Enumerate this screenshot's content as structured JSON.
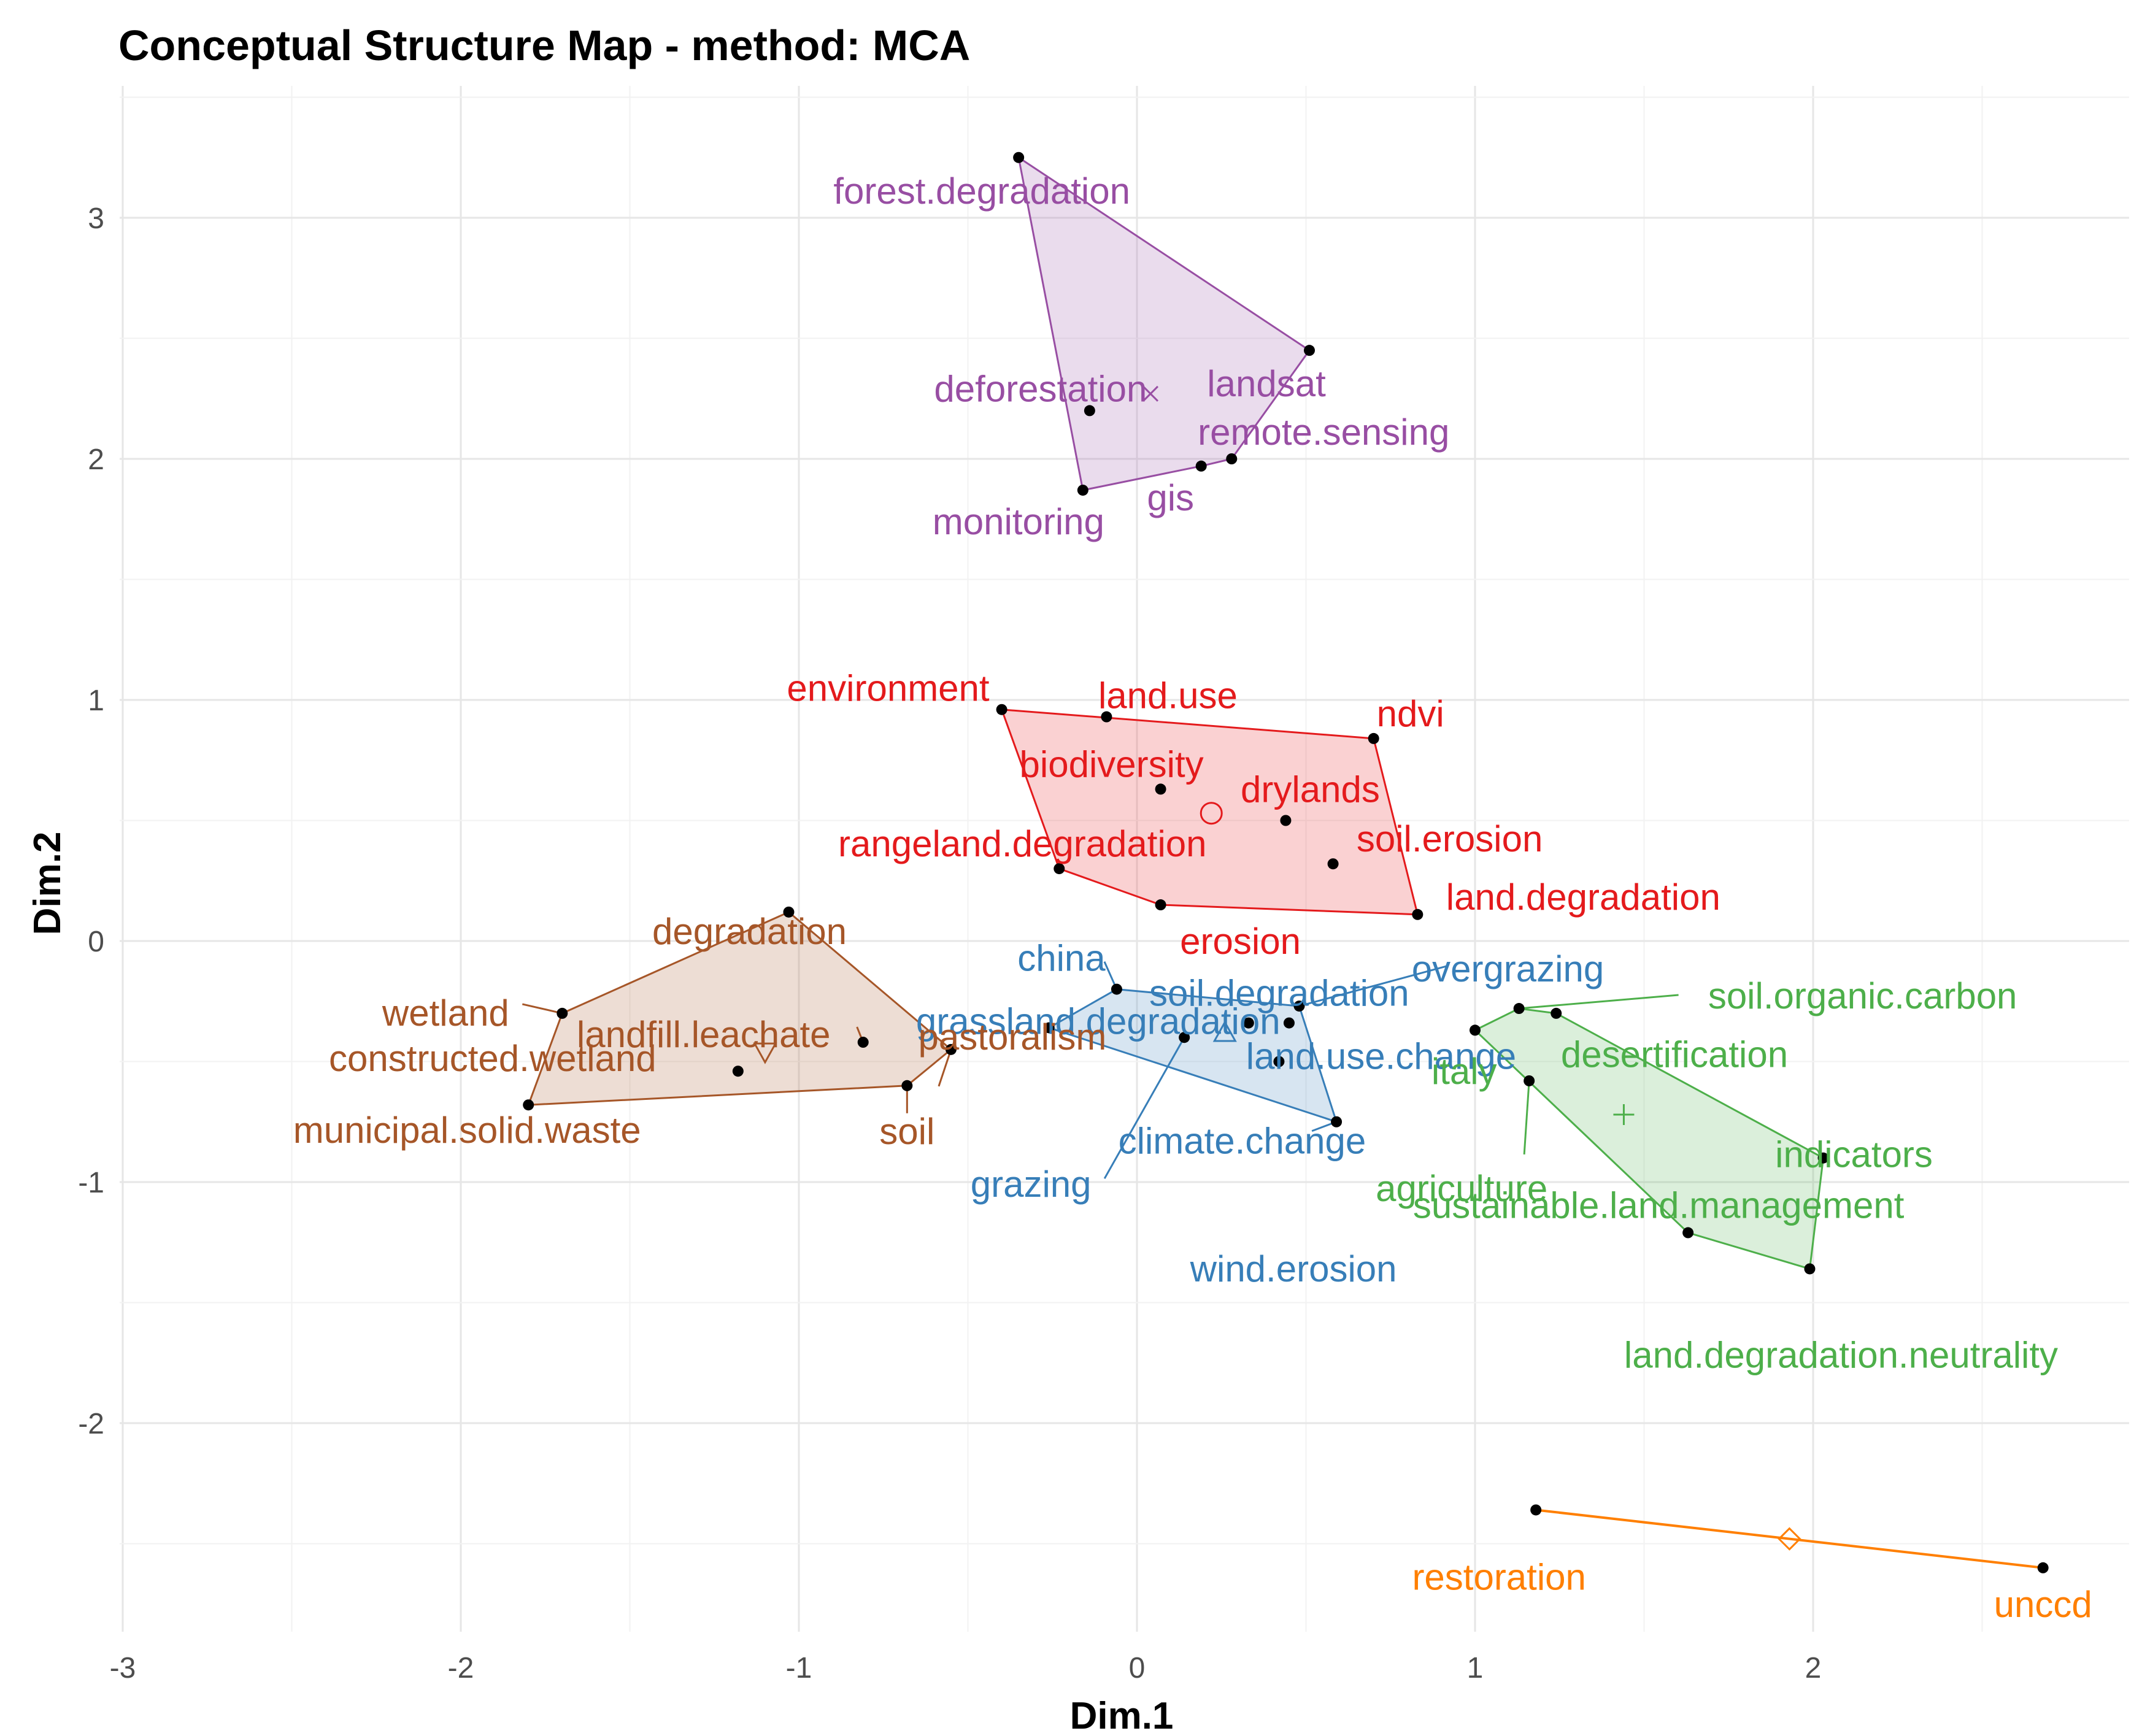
{
  "chart_data": {
    "type": "scatter",
    "title": "Conceptual Structure Map - method: MCA",
    "xlabel": "Dim.1",
    "ylabel": "Dim.2",
    "xlim": [
      -3,
      2.9
    ],
    "ylim": [
      -2.9,
      3.5
    ],
    "x_ticks": [
      -3,
      -2,
      -1,
      0,
      1,
      2
    ],
    "y_ticks": [
      -2,
      -1,
      0,
      1,
      2,
      3
    ],
    "grid": true,
    "legend": "none",
    "clusters": [
      {
        "id": 1,
        "color": "#e41a1c",
        "centroid": {
          "x": 0.22,
          "y": 0.53,
          "marker": "circle"
        },
        "points": [
          {
            "label": "environment",
            "x": -0.4,
            "y": 0.96
          },
          {
            "label": "land.use",
            "x": -0.09,
            "y": 0.93
          },
          {
            "label": "ndvi",
            "x": 0.7,
            "y": 0.84
          },
          {
            "label": "biodiversity",
            "x": 0.07,
            "y": 0.63
          },
          {
            "label": "drylands",
            "x": 0.44,
            "y": 0.5
          },
          {
            "label": "soil.erosion",
            "x": 0.58,
            "y": 0.32
          },
          {
            "label": "rangeland.degradation",
            "x": -0.23,
            "y": 0.3
          },
          {
            "label": "erosion",
            "x": 0.07,
            "y": 0.15
          },
          {
            "label": "land.degradation",
            "x": 0.83,
            "y": 0.11
          }
        ],
        "hull": [
          "environment",
          "ndvi",
          "land.degradation",
          "erosion",
          "rangeland.degradation"
        ]
      },
      {
        "id": 2,
        "color": "#377eb8",
        "centroid": {
          "x": 0.26,
          "y": -0.38,
          "marker": "triangle"
        },
        "points": [
          {
            "label": "china",
            "x": -0.06,
            "y": -0.2
          },
          {
            "label": "overgrazing",
            "x": 0.48,
            "y": -0.27
          },
          {
            "label": "soil.degradation",
            "x": 0.33,
            "y": -0.34
          },
          {
            "label": "grassland.degradation",
            "x": -0.26,
            "y": -0.36
          },
          {
            "label": "land.use.change",
            "x": 0.45,
            "y": -0.34
          },
          {
            "label": "climate.change",
            "x": 0.42,
            "y": -0.5
          },
          {
            "label": "grazing",
            "x": 0.14,
            "y": -0.4
          },
          {
            "label": "wind.erosion",
            "x": 0.59,
            "y": -0.75
          }
        ],
        "hull": [
          "china",
          "overgrazing",
          "wind.erosion",
          "grassland.degradation"
        ]
      },
      {
        "id": 3,
        "color": "#4daf4a",
        "centroid": {
          "x": 1.44,
          "y": -0.72,
          "marker": "plus"
        },
        "points": [
          {
            "label": "soil.organic.carbon",
            "x": 1.13,
            "y": -0.28
          },
          {
            "label": "italy",
            "x": 1.24,
            "y": -0.3
          },
          {
            "label": "desertification",
            "x": 1.0,
            "y": -0.37
          },
          {
            "label": "agriculture",
            "x": 1.16,
            "y": -0.58
          },
          {
            "label": "indicators",
            "x": 2.03,
            "y": -0.9
          },
          {
            "label": "sustainable.land.management",
            "x": 1.63,
            "y": -1.21
          },
          {
            "label": "land.degradation.neutrality",
            "x": 1.99,
            "y": -1.36
          }
        ],
        "hull": [
          "desertification",
          "soil.organic.carbon",
          "italy",
          "indicators",
          "land.degradation.neutrality",
          "sustainable.land.management"
        ]
      },
      {
        "id": 4,
        "color": "#984ea3",
        "centroid": {
          "x": 0.04,
          "y": 2.27,
          "marker": "cross"
        },
        "points": [
          {
            "label": "forest.degradation",
            "x": -0.35,
            "y": 3.25
          },
          {
            "label": "landsat",
            "x": 0.51,
            "y": 2.45
          },
          {
            "label": "deforestation",
            "x": -0.14,
            "y": 2.2
          },
          {
            "label": "remote.sensing",
            "x": 0.28,
            "y": 2.0
          },
          {
            "label": "gis",
            "x": 0.19,
            "y": 1.97
          },
          {
            "label": "monitoring",
            "x": -0.16,
            "y": 1.87
          }
        ],
        "hull": [
          "forest.degradation",
          "landsat",
          "remote.sensing",
          "gis",
          "monitoring"
        ]
      },
      {
        "id": 5,
        "color": "#ff7f00",
        "centroid": {
          "x": 1.93,
          "y": -2.48,
          "marker": "diamond"
        },
        "points": [
          {
            "label": "restoration",
            "x": 1.18,
            "y": -2.36
          },
          {
            "label": "unccd",
            "x": 2.68,
            "y": -2.6
          }
        ],
        "hull": [
          "restoration",
          "unccd"
        ]
      },
      {
        "id": 6,
        "color": "#a65628",
        "centroid": {
          "x": -1.1,
          "y": -0.46,
          "marker": "triangle-down"
        },
        "points": [
          {
            "label": "degradation",
            "x": -1.03,
            "y": 0.12
          },
          {
            "label": "wetland",
            "x": -1.7,
            "y": -0.3
          },
          {
            "label": "landfill.leachate",
            "x": -0.81,
            "y": -0.42
          },
          {
            "label": "constructed.wetland",
            "x": -1.18,
            "y": -0.54
          },
          {
            "label": "pastoralism",
            "x": -0.55,
            "y": -0.45
          },
          {
            "label": "soil",
            "x": -0.68,
            "y": -0.6
          },
          {
            "label": "municipal.solid.waste",
            "x": -1.8,
            "y": -0.68
          }
        ],
        "hull": [
          "degradation",
          "pastoralism",
          "soil",
          "municipal.solid.waste",
          "wetland"
        ]
      }
    ]
  }
}
